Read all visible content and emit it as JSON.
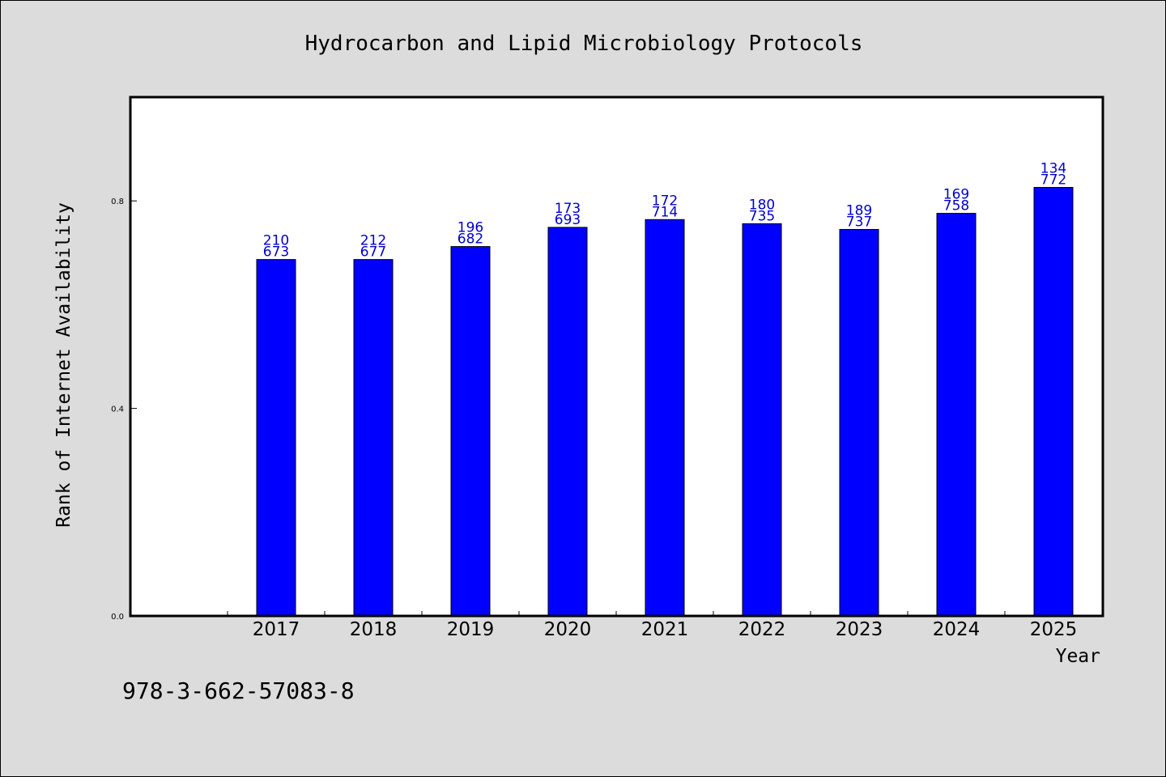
{
  "chart_data": {
    "type": "bar",
    "title": "Hydrocarbon and Lipid Microbiology Protocols",
    "xlabel": "Year",
    "ylabel": "Rank of Internet Availability",
    "categories": [
      "2017",
      "2018",
      "2019",
      "2020",
      "2021",
      "2022",
      "2023",
      "2024",
      "2025"
    ],
    "values": [
      0.687,
      0.687,
      0.712,
      0.749,
      0.764,
      0.756,
      0.745,
      0.776,
      0.826
    ],
    "data_labels": [
      [
        "210",
        "673"
      ],
      [
        "212",
        "677"
      ],
      [
        "196",
        "682"
      ],
      [
        "173",
        "693"
      ],
      [
        "172",
        "714"
      ],
      [
        "180",
        "735"
      ],
      [
        "189",
        "737"
      ],
      [
        "169",
        "758"
      ],
      [
        "134",
        "772"
      ]
    ],
    "ylim": [
      0,
      1.0
    ],
    "yticks": [
      {
        "value": 0.0,
        "label": "0.0"
      },
      {
        "value": 0.4,
        "label": "0.4"
      },
      {
        "value": 0.8,
        "label": "0.8"
      }
    ],
    "grid": false,
    "bar_color": "#0000ff",
    "label_color": "#0000cd",
    "footer_text": "978-3-662-57083-8"
  }
}
